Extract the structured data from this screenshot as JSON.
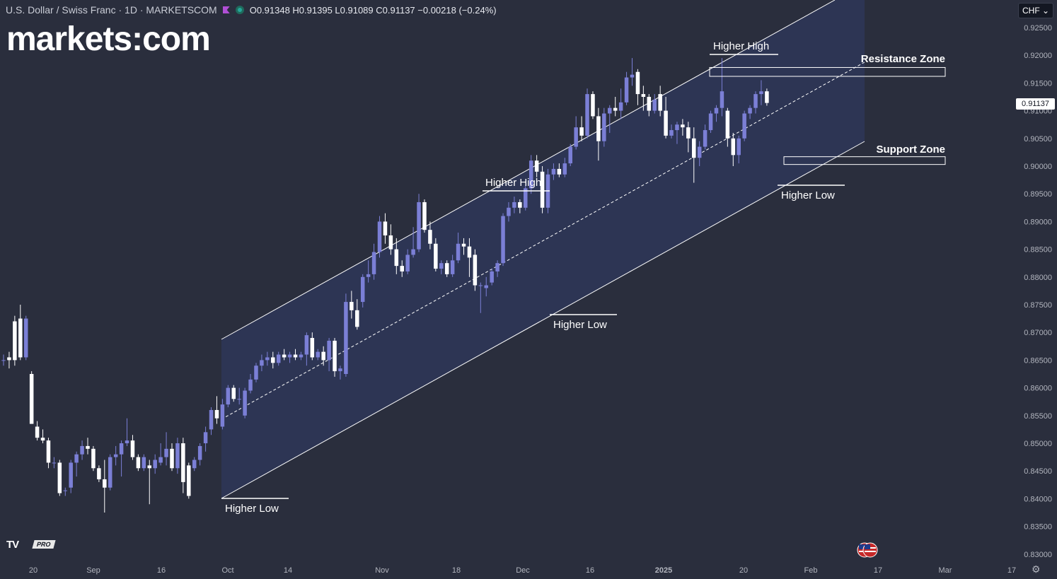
{
  "header": {
    "symbol": "U.S. Dollar / Swiss Franc · 1D · MARKETSCOM",
    "ohlc": "O0.91348 H0.91395 L0.91089 C0.91137 −0.00218 (−0.24%)"
  },
  "brand": {
    "logo_text": "markets:com"
  },
  "currency_select": {
    "value": "CHF"
  },
  "last_price_label": "0.91137",
  "branding": {
    "tv_logo": "TV",
    "tv_tier": "PRO"
  },
  "icons": {
    "settings": "gear-icon",
    "flag": "us-flag-icon",
    "dropdown": "chevron-down-icon"
  },
  "colors": {
    "background": "#2a2e3d",
    "bull": "#7b7fd6",
    "bear": "#ffffff",
    "channel": "#2e3656"
  },
  "chart_data": {
    "type": "candlestick",
    "title": "U.S. Dollar / Swiss Franc",
    "ylim": [
      0.8275,
      0.9275
    ],
    "y_ticks": [
      "0.92500",
      "0.92000",
      "0.91500",
      "0.91000",
      "0.90500",
      "0.90000",
      "0.89500",
      "0.89000",
      "0.88500",
      "0.88000",
      "0.87500",
      "0.87000",
      "0.86500",
      "0.86000",
      "0.85500",
      "0.85000",
      "0.84500",
      "0.84000",
      "0.83500",
      "0.83000"
    ],
    "x_ticks": [
      "20",
      "Sep",
      "16",
      "Oct",
      "14",
      "Nov",
      "18",
      "Dec",
      "16",
      "2025",
      "20",
      "Feb",
      "17",
      "Mar",
      "17"
    ],
    "annotations": [
      {
        "text": "Higher High",
        "x_date": "2025-01-14",
        "price": 0.9195
      },
      {
        "text": "Higher High",
        "x_date": "2024-11-21",
        "price": 0.8948
      },
      {
        "text": "Higher Low",
        "x_date": "2024-10-01",
        "price": 0.84
      },
      {
        "text": "Higher Low",
        "x_date": "2024-12-10",
        "price": 0.8735
      },
      {
        "text": "Higher Low",
        "x_date": "2025-01-27",
        "price": 0.8965
      },
      {
        "text": "Resistance Zone",
        "x_date": "2025-02-18",
        "price": 0.92
      },
      {
        "text": "Support Zone",
        "x_date": "2025-02-18",
        "price": 0.9035
      }
    ],
    "zones": [
      {
        "name": "Resistance Zone",
        "from": 0.9162,
        "to": 0.9178
      },
      {
        "name": "Support Zone",
        "from": 0.9003,
        "to": 0.9017
      }
    ],
    "candles": [
      [
        0.865,
        0.866,
        0.864,
        0.865
      ],
      [
        0.8655,
        0.8665,
        0.8635,
        0.865
      ],
      [
        0.872,
        0.873,
        0.864,
        0.865
      ],
      [
        0.8725,
        0.875,
        0.865,
        0.8655
      ],
      [
        0.8655,
        0.873,
        0.865,
        0.8725
      ],
      [
        0.8625,
        0.863,
        0.8535,
        0.8535
      ],
      [
        0.853,
        0.854,
        0.8505,
        0.851
      ],
      [
        0.851,
        0.8525,
        0.85,
        0.8505
      ],
      [
        0.8505,
        0.851,
        0.8455,
        0.8465
      ],
      [
        0.8465,
        0.8475,
        0.8455,
        0.8465
      ],
      [
        0.8465,
        0.847,
        0.8405,
        0.841
      ],
      [
        0.8415,
        0.842,
        0.8405,
        0.8415
      ],
      [
        0.842,
        0.847,
        0.841,
        0.8465
      ],
      [
        0.8465,
        0.8485,
        0.844,
        0.848
      ],
      [
        0.848,
        0.8505,
        0.847,
        0.8495
      ],
      [
        0.8495,
        0.851,
        0.848,
        0.849
      ],
      [
        0.849,
        0.8495,
        0.845,
        0.8455
      ],
      [
        0.8455,
        0.846,
        0.843,
        0.8435
      ],
      [
        0.8435,
        0.847,
        0.8375,
        0.842
      ],
      [
        0.842,
        0.848,
        0.8415,
        0.8475
      ],
      [
        0.8475,
        0.8495,
        0.846,
        0.848
      ],
      [
        0.848,
        0.8505,
        0.844,
        0.85
      ],
      [
        0.85,
        0.8545,
        0.8495,
        0.8505
      ],
      [
        0.8505,
        0.8515,
        0.847,
        0.8475
      ],
      [
        0.8475,
        0.848,
        0.845,
        0.8455
      ],
      [
        0.8455,
        0.848,
        0.845,
        0.8475
      ],
      [
        0.846,
        0.847,
        0.839,
        0.8455
      ],
      [
        0.8455,
        0.848,
        0.8445,
        0.847
      ],
      [
        0.8465,
        0.85,
        0.846,
        0.8475
      ],
      [
        0.8475,
        0.852,
        0.846,
        0.849
      ],
      [
        0.849,
        0.85,
        0.845,
        0.8455
      ],
      [
        0.8455,
        0.851,
        0.8445,
        0.85
      ],
      [
        0.85,
        0.851,
        0.841,
        0.843
      ],
      [
        0.846,
        0.8465,
        0.84,
        0.8405
      ],
      [
        0.8455,
        0.8475,
        0.845,
        0.847
      ],
      [
        0.847,
        0.85,
        0.846,
        0.8495
      ],
      [
        0.85,
        0.853,
        0.8485,
        0.852
      ],
      [
        0.8525,
        0.8565,
        0.8515,
        0.856
      ],
      [
        0.856,
        0.8585,
        0.8535,
        0.8545
      ],
      [
        0.853,
        0.858,
        0.8525,
        0.857
      ],
      [
        0.857,
        0.8605,
        0.8565,
        0.86
      ],
      [
        0.86,
        0.8605,
        0.8575,
        0.858
      ],
      [
        0.858,
        0.86,
        0.857,
        0.858
      ],
      [
        0.855,
        0.86,
        0.8545,
        0.8595
      ],
      [
        0.8595,
        0.8625,
        0.859,
        0.8615
      ],
      [
        0.8615,
        0.8645,
        0.861,
        0.864
      ],
      [
        0.864,
        0.866,
        0.863,
        0.865
      ],
      [
        0.865,
        0.8665,
        0.864,
        0.8655
      ],
      [
        0.8655,
        0.8665,
        0.8635,
        0.8645
      ],
      [
        0.8645,
        0.8665,
        0.864,
        0.866
      ],
      [
        0.866,
        0.867,
        0.865,
        0.8655
      ],
      [
        0.8655,
        0.8665,
        0.8645,
        0.866
      ],
      [
        0.866,
        0.867,
        0.865,
        0.8655
      ],
      [
        0.8655,
        0.8665,
        0.865,
        0.866
      ],
      [
        0.866,
        0.87,
        0.864,
        0.8695
      ],
      [
        0.869,
        0.87,
        0.865,
        0.8655
      ],
      [
        0.8655,
        0.867,
        0.865,
        0.8665
      ],
      [
        0.8665,
        0.8675,
        0.864,
        0.865
      ],
      [
        0.865,
        0.869,
        0.863,
        0.8685
      ],
      [
        0.8685,
        0.869,
        0.862,
        0.863
      ],
      [
        0.863,
        0.864,
        0.8615,
        0.8635
      ],
      [
        0.8625,
        0.877,
        0.862,
        0.8755
      ],
      [
        0.8755,
        0.8775,
        0.8725,
        0.874
      ],
      [
        0.874,
        0.876,
        0.8705,
        0.871
      ],
      [
        0.8755,
        0.8805,
        0.8745,
        0.88
      ],
      [
        0.88,
        0.883,
        0.879,
        0.8805
      ],
      [
        0.8805,
        0.886,
        0.8795,
        0.8845
      ],
      [
        0.8845,
        0.891,
        0.8835,
        0.89
      ],
      [
        0.89,
        0.8915,
        0.886,
        0.8875
      ],
      [
        0.8875,
        0.8895,
        0.884,
        0.885
      ],
      [
        0.885,
        0.887,
        0.8805,
        0.882
      ],
      [
        0.882,
        0.883,
        0.88,
        0.881
      ],
      [
        0.881,
        0.885,
        0.8805,
        0.884
      ],
      [
        0.884,
        0.889,
        0.8835,
        0.885
      ],
      [
        0.885,
        0.895,
        0.8845,
        0.8935
      ],
      [
        0.8935,
        0.894,
        0.888,
        0.8885
      ],
      [
        0.8885,
        0.89,
        0.885,
        0.886
      ],
      [
        0.886,
        0.887,
        0.881,
        0.8815
      ],
      [
        0.8815,
        0.883,
        0.8805,
        0.8825
      ],
      [
        0.8825,
        0.883,
        0.88,
        0.8805
      ],
      [
        0.8805,
        0.884,
        0.88,
        0.883
      ],
      [
        0.883,
        0.888,
        0.8825,
        0.886
      ],
      [
        0.886,
        0.887,
        0.884,
        0.8855
      ],
      [
        0.8855,
        0.887,
        0.88,
        0.8835
      ],
      [
        0.884,
        0.885,
        0.8775,
        0.8785
      ],
      [
        0.8785,
        0.879,
        0.8735,
        0.8785
      ],
      [
        0.878,
        0.88,
        0.8765,
        0.8785
      ],
      [
        0.879,
        0.8815,
        0.8785,
        0.881
      ],
      [
        0.881,
        0.883,
        0.88,
        0.8825
      ],
      [
        0.8825,
        0.8915,
        0.882,
        0.891
      ],
      [
        0.891,
        0.8935,
        0.89,
        0.8925
      ],
      [
        0.8925,
        0.8945,
        0.8915,
        0.8935
      ],
      [
        0.8935,
        0.894,
        0.8915,
        0.8925
      ],
      [
        0.8925,
        0.8965,
        0.892,
        0.896
      ],
      [
        0.896,
        0.902,
        0.895,
        0.901
      ],
      [
        0.901,
        0.902,
        0.898,
        0.899
      ],
      [
        0.899,
        0.9,
        0.8915,
        0.8925
      ],
      [
        0.8925,
        0.8995,
        0.8915,
        0.8985
      ],
      [
        0.8985,
        0.9005,
        0.8975,
        0.8995
      ],
      [
        0.8995,
        0.9005,
        0.898,
        0.8985
      ],
      [
        0.8985,
        0.9015,
        0.898,
        0.9005
      ],
      [
        0.9005,
        0.904,
        0.9,
        0.9035
      ],
      [
        0.9035,
        0.909,
        0.903,
        0.907
      ],
      [
        0.907,
        0.909,
        0.9045,
        0.9055
      ],
      [
        0.9055,
        0.914,
        0.905,
        0.913
      ],
      [
        0.913,
        0.9135,
        0.9085,
        0.909
      ],
      [
        0.909,
        0.9105,
        0.901,
        0.9045
      ],
      [
        0.9045,
        0.9105,
        0.9035,
        0.9095
      ],
      [
        0.9095,
        0.911,
        0.906,
        0.9105
      ],
      [
        0.9105,
        0.9125,
        0.909,
        0.91
      ],
      [
        0.91,
        0.914,
        0.9085,
        0.9115
      ],
      [
        0.9115,
        0.917,
        0.911,
        0.916
      ],
      [
        0.916,
        0.9195,
        0.9145,
        0.9165
      ],
      [
        0.917,
        0.9175,
        0.911,
        0.913
      ],
      [
        0.913,
        0.9145,
        0.91,
        0.9125
      ],
      [
        0.9125,
        0.913,
        0.909,
        0.91
      ],
      [
        0.91,
        0.913,
        0.9095,
        0.912
      ],
      [
        0.913,
        0.9145,
        0.909,
        0.91
      ],
      [
        0.91,
        0.9125,
        0.905,
        0.9055
      ],
      [
        0.9055,
        0.9075,
        0.905,
        0.9065
      ],
      [
        0.9065,
        0.908,
        0.904,
        0.9075
      ],
      [
        0.9075,
        0.9085,
        0.9055,
        0.907
      ],
      [
        0.907,
        0.908,
        0.9025,
        0.905
      ],
      [
        0.905,
        0.907,
        0.897,
        0.9015
      ],
      [
        0.9015,
        0.9045,
        0.9,
        0.9035
      ],
      [
        0.9035,
        0.9075,
        0.903,
        0.9065
      ],
      [
        0.9065,
        0.91,
        0.906,
        0.9095
      ],
      [
        0.9095,
        0.911,
        0.908,
        0.9105
      ],
      [
        0.9105,
        0.9195,
        0.909,
        0.9135
      ],
      [
        0.91,
        0.9105,
        0.9035,
        0.905
      ],
      [
        0.905,
        0.906,
        0.9,
        0.902
      ],
      [
        0.902,
        0.9055,
        0.9005,
        0.905
      ],
      [
        0.905,
        0.91,
        0.9045,
        0.9095
      ],
      [
        0.9095,
        0.911,
        0.9085,
        0.9105
      ],
      [
        0.9105,
        0.9135,
        0.9095,
        0.913
      ],
      [
        0.913,
        0.9155,
        0.911,
        0.9135
      ],
      [
        0.9135,
        0.914,
        0.9109,
        0.9114
      ]
    ]
  }
}
